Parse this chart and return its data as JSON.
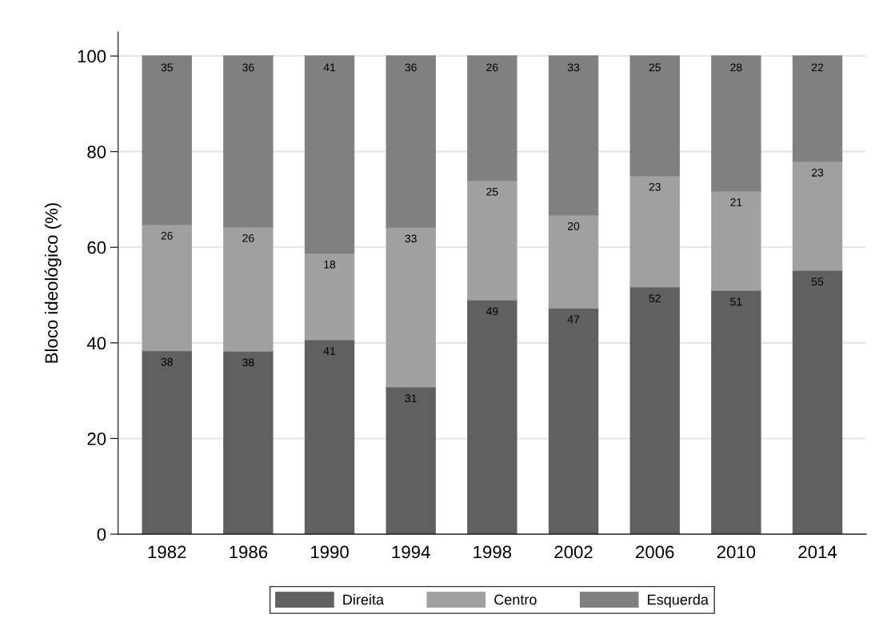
{
  "chart_data": {
    "type": "bar",
    "stacked": true,
    "ylabel": "Bloco ideológico (%)",
    "categories": [
      "1982",
      "1986",
      "1990",
      "1994",
      "1998",
      "2002",
      "2006",
      "2010",
      "2014"
    ],
    "series": [
      {
        "name": "Direita",
        "color": "#606060",
        "values": [
          38.4,
          38.3,
          40.7,
          30.8,
          49.0,
          47.3,
          51.7,
          51.0,
          55.2
        ],
        "value_labels": [
          "38",
          "38",
          "41",
          "31",
          "49",
          "47",
          "52",
          "51",
          "55"
        ]
      },
      {
        "name": "Centro",
        "color": "#a0a0a0",
        "values": [
          26.4,
          26.0,
          18.1,
          33.4,
          25.0,
          19.5,
          23.3,
          20.8,
          22.8
        ],
        "value_labels": [
          "26",
          "26",
          "18",
          "33",
          "25",
          "20",
          "23",
          "21",
          "23"
        ]
      },
      {
        "name": "Esquerda",
        "color": "#808080",
        "values": [
          35.2,
          35.7,
          41.2,
          35.8,
          26.0,
          33.2,
          25.0,
          28.2,
          22.0
        ],
        "value_labels": [
          "35",
          "36",
          "41",
          "36",
          "26",
          "33",
          "25",
          "28",
          "22"
        ]
      }
    ],
    "ylim": [
      0,
      105
    ],
    "yticks": [
      0,
      20,
      40,
      60,
      80,
      100
    ],
    "grid": "y",
    "legend": "bottom"
  }
}
